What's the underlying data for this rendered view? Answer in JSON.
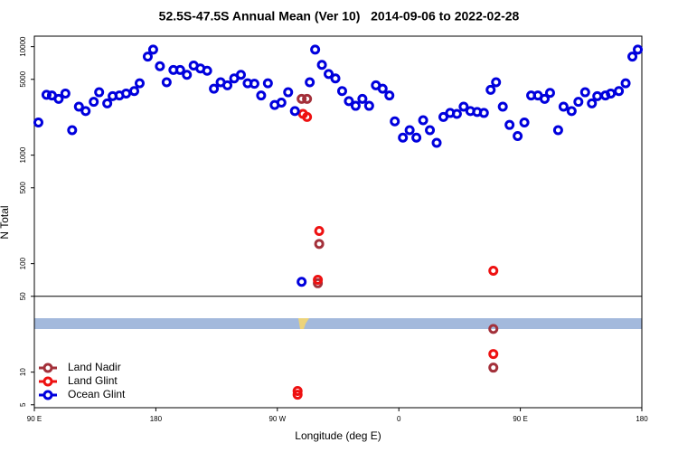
{
  "chart_data": {
    "type": "scatter",
    "title": "52.5S-47.5S Annual Mean (Ver 10)   2014-09-06 to 2022-02-28",
    "x_label": "Longitude (deg E)",
    "y_label": "N Total",
    "log_y": true,
    "xlim": [
      90,
      540
    ],
    "ylim": [
      4.7,
      12500
    ],
    "xticks": [
      {
        "value": 90,
        "label": "90 E"
      },
      {
        "value": 180,
        "label": "180"
      },
      {
        "value": 270,
        "label": "90 W"
      },
      {
        "value": 360,
        "label": "0"
      },
      {
        "value": 450,
        "label": "90 E"
      },
      {
        "value": 540,
        "label": "180"
      }
    ],
    "yticks": [
      5,
      10,
      50,
      100,
      500,
      1000,
      5000,
      10000
    ],
    "reference_line": 50,
    "legend": "bottom-left",
    "series": [
      {
        "name": "Land Nadir",
        "color": "#a3303a",
        "x": [
          288,
          292,
          300,
          301,
          430,
          430
        ],
        "values": [
          3300,
          3300,
          66,
          152,
          25,
          11
        ]
      },
      {
        "name": "Land Glint",
        "color": "#ee1111",
        "x": [
          289,
          292,
          300,
          301,
          285,
          285,
          430,
          430
        ],
        "values": [
          2400,
          2250,
          71,
          200,
          6.7,
          6.2,
          86,
          14.7
        ]
      },
      {
        "name": "Ocean Glint",
        "color": "#0000dd",
        "x": [
          93,
          99,
          103,
          108,
          113,
          118,
          123,
          128,
          134,
          138,
          144,
          148,
          153,
          158,
          164,
          168,
          174,
          178,
          183,
          188,
          193,
          198,
          203,
          208,
          213,
          218,
          223,
          228,
          233,
          238,
          243,
          248,
          253,
          258,
          263,
          268,
          273,
          278,
          283,
          288,
          294,
          298,
          303,
          308,
          313,
          318,
          323,
          328,
          333,
          338,
          343,
          348,
          353,
          357,
          363,
          368,
          373,
          378,
          383,
          388,
          393,
          398,
          403,
          408,
          413,
          418,
          423,
          428,
          432,
          437,
          442,
          448,
          453,
          458,
          463,
          468,
          472,
          478,
          482,
          488,
          493,
          498,
          503,
          507,
          513,
          517,
          523,
          528,
          533,
          537
        ],
        "values": [
          2000,
          3600,
          3550,
          3300,
          3700,
          1700,
          2800,
          2550,
          3100,
          3800,
          3000,
          3500,
          3550,
          3700,
          3900,
          4600,
          8100,
          9400,
          6600,
          4700,
          6100,
          6100,
          5500,
          6700,
          6300,
          6000,
          4100,
          4700,
          4400,
          5100,
          5500,
          4600,
          4550,
          3550,
          4600,
          2900,
          3050,
          3800,
          2550,
          68,
          4700,
          9400,
          6800,
          5600,
          5100,
          3900,
          3150,
          2850,
          3300,
          2850,
          4400,
          4100,
          3550,
          2050,
          1450,
          1700,
          1450,
          2100,
          1700,
          1300,
          2250,
          2450,
          2400,
          2800,
          2550,
          2500,
          2450,
          4000,
          4700,
          2800,
          1900,
          1500,
          2000,
          3550,
          3550,
          3300,
          3750,
          1700,
          2800,
          2550,
          3100,
          3800,
          3000,
          3500,
          3550,
          3700,
          3900,
          4600,
          8100,
          9400
        ]
      }
    ]
  }
}
